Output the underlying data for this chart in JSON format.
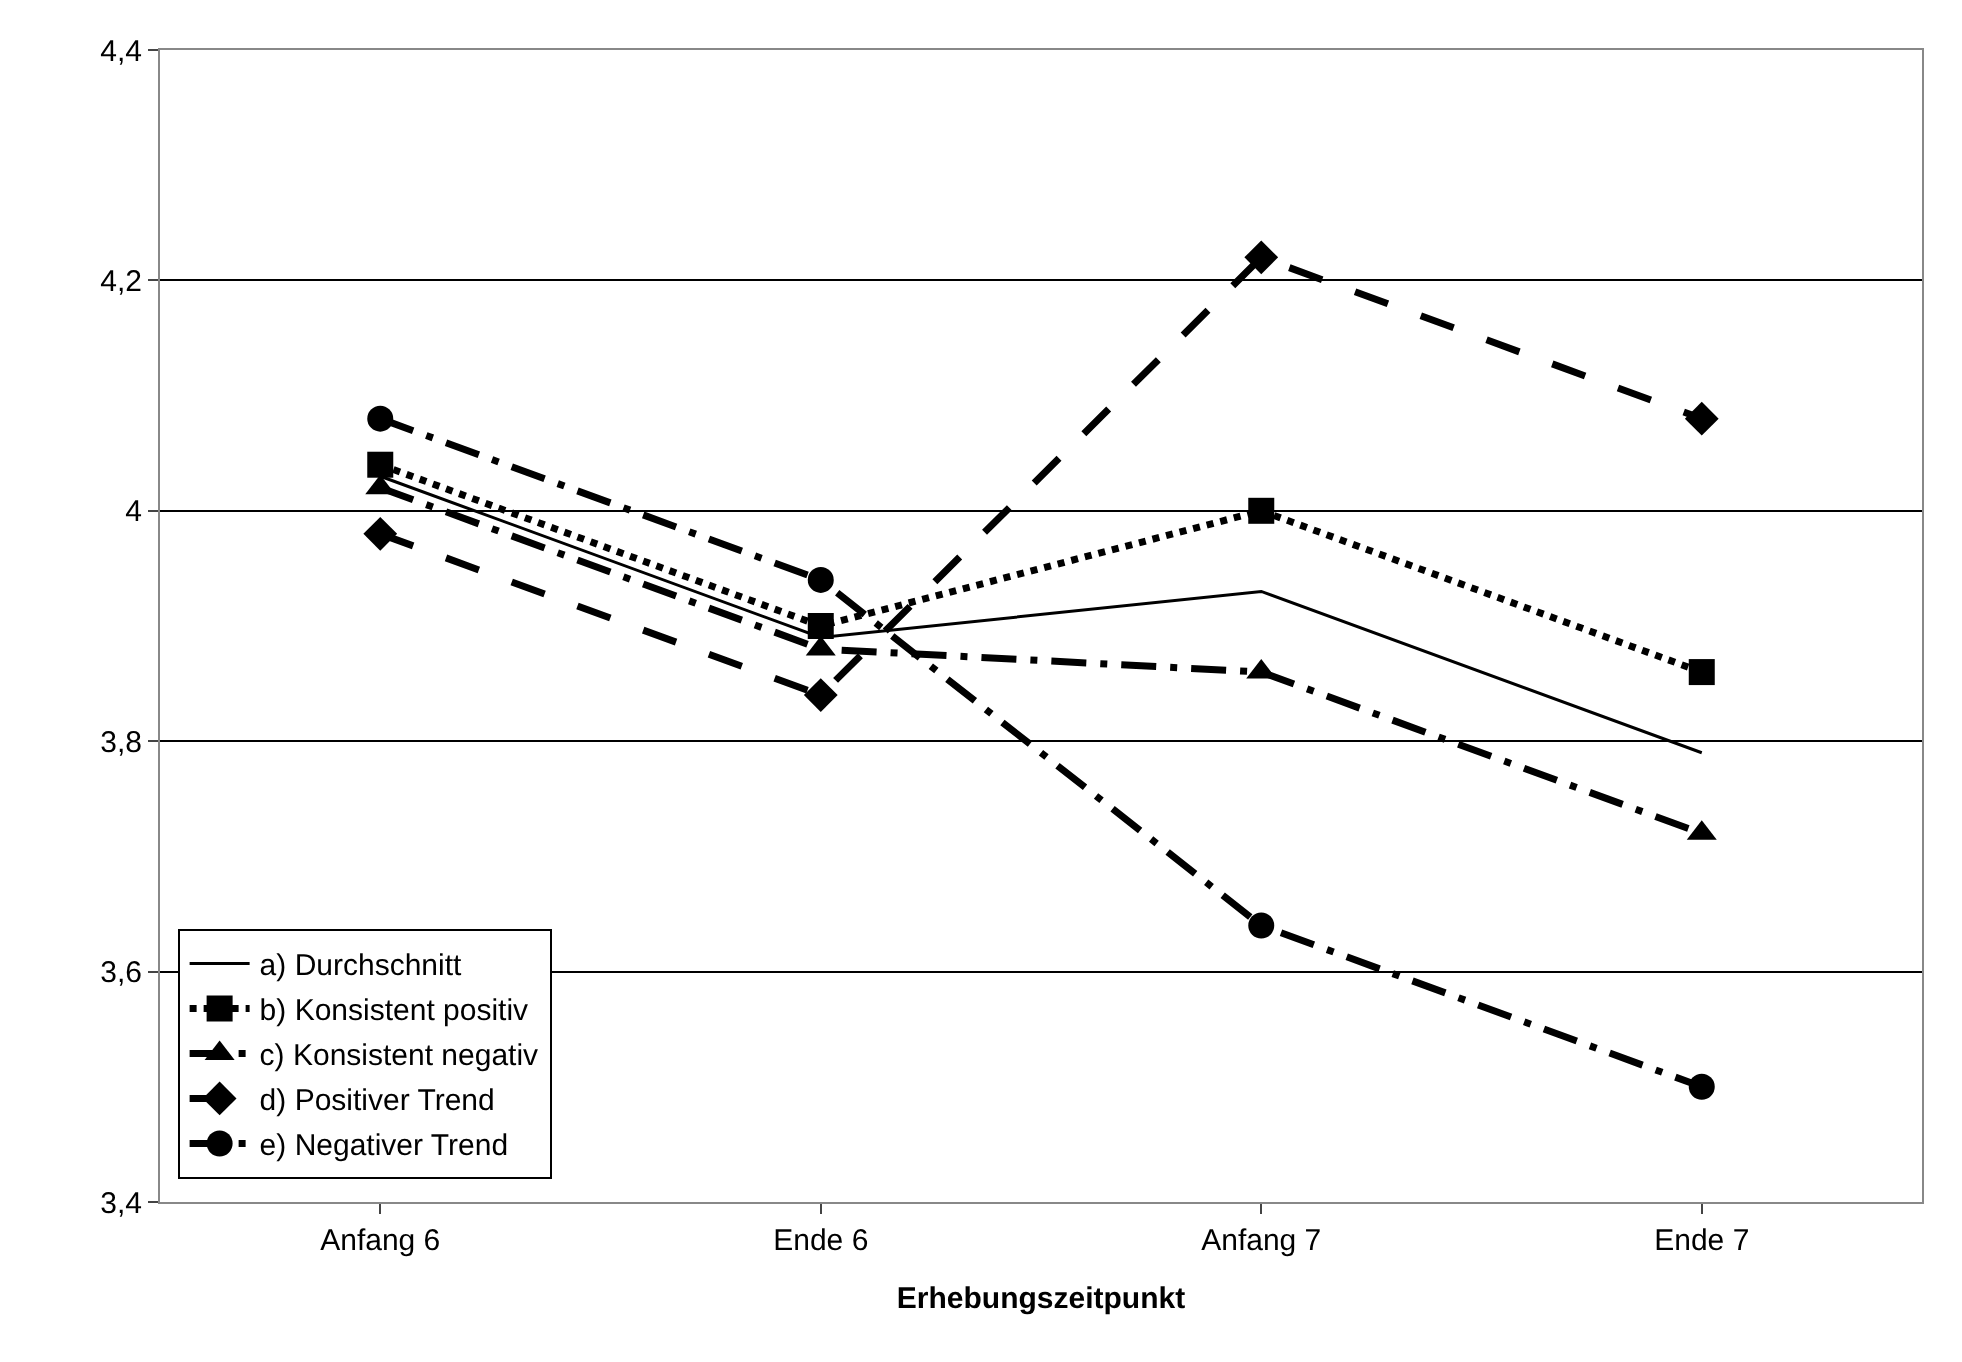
{
  "chart_data": {
    "type": "line",
    "xlabel": "Erhebungszeitpunkt",
    "categories": [
      "Anfang 6",
      "Ende 6",
      "Anfang 7",
      "Ende 7"
    ],
    "ylim": [
      3.4,
      4.4
    ],
    "yticks": [
      {
        "value": 3.4,
        "label": "3,4"
      },
      {
        "value": 3.6,
        "label": "3,6"
      },
      {
        "value": 3.8,
        "label": "3,8"
      },
      {
        "value": 4,
        "label": "4"
      },
      {
        "value": 4.2,
        "label": "4,2"
      },
      {
        "value": 4.4,
        "label": "4,4"
      }
    ],
    "grid": "y",
    "legend": "bottom left",
    "series": [
      {
        "name": "a) Durchschnitt",
        "color": "#000000",
        "marker": "none",
        "line_style": "solid",
        "values": [
          4.03,
          3.89,
          3.93,
          3.79
        ]
      },
      {
        "name": "b) Konsistent positiv",
        "color": "#000000",
        "marker": "square",
        "line_style": "dotted",
        "values": [
          4.04,
          3.9,
          4.0,
          3.86
        ]
      },
      {
        "name": "c) Konsistent negativ",
        "color": "#000000",
        "marker": "triangle",
        "line_style": "dashdot",
        "values": [
          4.02,
          3.88,
          3.86,
          3.72
        ]
      },
      {
        "name": "d) Positiver Trend",
        "color": "#000000",
        "marker": "diamond",
        "line_style": "dashed",
        "values": [
          3.98,
          3.84,
          4.22,
          4.08
        ]
      },
      {
        "name": "e) Negativer Trend",
        "color": "#000000",
        "marker": "circle",
        "line_style": "dashdot",
        "values": [
          4.08,
          3.94,
          3.64,
          3.5
        ]
      }
    ]
  }
}
